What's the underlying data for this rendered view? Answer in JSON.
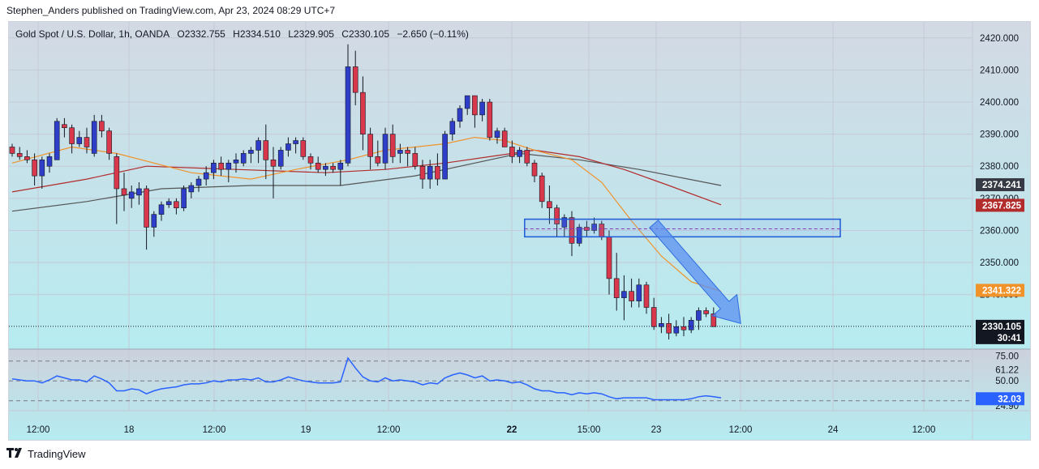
{
  "header": {
    "publisher": "Stephen_Anders published on TradingView.com, Apr 23, 2024 08:29 UTC+7"
  },
  "legend": {
    "symbol": "Gold Spot / U.S. Dollar, 1h, OANDA",
    "open": "O2332.755",
    "high": "H2334.510",
    "low": "L2329.905",
    "close": "C2330.105",
    "change": "−2.650 (−0.11%)"
  },
  "footer": {
    "brand": "TradingView"
  },
  "colors": {
    "up": "#2e3ec9",
    "down": "#d9374b",
    "sma_fast": "#f0932b",
    "sma_mid": "#b22c2c",
    "sma_slow": "#555555",
    "rsi": "#2962ff",
    "zone": "#1e5bd6",
    "arrow": "#5b8ff0"
  },
  "chart_data": {
    "type": "candlestick",
    "symbol": "Gold Spot / U.S. Dollar",
    "timeframe": "1h",
    "ylim": [
      2323,
      2425
    ],
    "y_ticks": [
      "2420.000",
      "2410.000",
      "2400.000",
      "2390.000",
      "2380.000",
      "2370.000",
      "2360.000",
      "2350.000",
      "2340.000"
    ],
    "x_ticks": [
      "12:00",
      "18",
      "12:00",
      "19",
      "12:00",
      "22",
      "15:00",
      "23",
      "12:00",
      "24",
      "12:00"
    ],
    "x_tick_bold": [
      false,
      false,
      false,
      false,
      false,
      true,
      false,
      false,
      false,
      false,
      false
    ],
    "price_labels": [
      {
        "text": "2374.241",
        "value": 2374.241,
        "bg": "#363a45",
        "fg": "#ffffff"
      },
      {
        "text": "2367.825",
        "value": 2367.825,
        "bg": "#b22c2c",
        "fg": "#ffffff"
      },
      {
        "text": "2341.322",
        "value": 2341.322,
        "bg": "#f0932b",
        "fg": "#ffffff"
      }
    ],
    "last_price": {
      "text": "2330.105",
      "value": 2330.105,
      "countdown": "30:41"
    },
    "candles": [
      [
        2386,
        2387,
        2383,
        2384
      ],
      [
        2384,
        2386,
        2382,
        2383
      ],
      [
        2383,
        2385,
        2381,
        2382
      ],
      [
        2382,
        2384,
        2374,
        2377
      ],
      [
        2377,
        2383,
        2373,
        2382
      ],
      [
        2380,
        2384,
        2378,
        2383
      ],
      [
        2382,
        2395,
        2382,
        2394
      ],
      [
        2393,
        2395,
        2389,
        2392
      ],
      [
        2392,
        2393,
        2384,
        2387
      ],
      [
        2387,
        2391,
        2386,
        2389
      ],
      [
        2389,
        2392,
        2384,
        2386
      ],
      [
        2384,
        2396,
        2383,
        2394
      ],
      [
        2394,
        2396,
        2389,
        2391
      ],
      [
        2391,
        2392,
        2382,
        2384
      ],
      [
        2383,
        2384,
        2362,
        2373
      ],
      [
        2373,
        2378,
        2366,
        2371
      ],
      [
        2370,
        2374,
        2367,
        2372
      ],
      [
        2371,
        2375,
        2368,
        2373
      ],
      [
        2373,
        2374,
        2354,
        2361
      ],
      [
        2361,
        2366,
        2358,
        2365
      ],
      [
        2365,
        2369,
        2363,
        2368
      ],
      [
        2368,
        2370,
        2367,
        2369
      ],
      [
        2369,
        2370,
        2365,
        2367
      ],
      [
        2367,
        2374,
        2366,
        2373
      ],
      [
        2372,
        2375,
        2370,
        2374
      ],
      [
        2374,
        2377,
        2372,
        2376
      ],
      [
        2376,
        2380,
        2374,
        2378
      ],
      [
        2378,
        2382,
        2376,
        2381
      ],
      [
        2381,
        2383,
        2377,
        2379
      ],
      [
        2379,
        2382,
        2375,
        2381
      ],
      [
        2381,
        2384,
        2378,
        2382
      ],
      [
        2381,
        2385,
        2380,
        2384
      ],
      [
        2384,
        2386,
        2381,
        2385
      ],
      [
        2385,
        2389,
        2381,
        2388
      ],
      [
        2388,
        2393,
        2376,
        2382
      ],
      [
        2382,
        2386,
        2370,
        2380
      ],
      [
        2380,
        2386,
        2379,
        2385
      ],
      [
        2385,
        2389,
        2383,
        2387
      ],
      [
        2387,
        2389,
        2384,
        2388
      ],
      [
        2388,
        2389,
        2382,
        2383
      ],
      [
        2383,
        2384,
        2379,
        2381
      ],
      [
        2381,
        2383,
        2378,
        2379
      ],
      [
        2379,
        2381,
        2377,
        2380
      ],
      [
        2380,
        2381,
        2378,
        2379
      ],
      [
        2379,
        2382,
        2374,
        2381
      ],
      [
        2381,
        2418,
        2380,
        2411
      ],
      [
        2411,
        2416,
        2399,
        2403
      ],
      [
        2403,
        2408,
        2385,
        2390
      ],
      [
        2390,
        2392,
        2379,
        2383
      ],
      [
        2383,
        2388,
        2380,
        2381
      ],
      [
        2381,
        2392,
        2379,
        2390
      ],
      [
        2390,
        2393,
        2381,
        2383
      ],
      [
        2384,
        2387,
        2381,
        2385
      ],
      [
        2385,
        2386,
        2380,
        2384
      ],
      [
        2384,
        2386,
        2379,
        2380
      ],
      [
        2380,
        2382,
        2373,
        2376
      ],
      [
        2376,
        2382,
        2373,
        2380
      ],
      [
        2380,
        2384,
        2374,
        2376
      ],
      [
        2376,
        2391,
        2376,
        2390
      ],
      [
        2390,
        2395,
        2388,
        2394
      ],
      [
        2394,
        2399,
        2392,
        2398
      ],
      [
        2398,
        2402,
        2396,
        2402
      ],
      [
        2402,
        2401,
        2392,
        2396
      ],
      [
        2396,
        2401,
        2394,
        2400
      ],
      [
        2400,
        2401,
        2388,
        2389
      ],
      [
        2389,
        2392,
        2387,
        2391
      ],
      [
        2391,
        2392,
        2386,
        2386
      ],
      [
        2386,
        2388,
        2381,
        2383
      ],
      [
        2383,
        2386,
        2381,
        2385
      ],
      [
        2385,
        2386,
        2380,
        2381
      ],
      [
        2381,
        2382,
        2375,
        2377
      ],
      [
        2377,
        2378,
        2367,
        2369
      ],
      [
        2369,
        2374,
        2362,
        2367
      ],
      [
        2367,
        2368,
        2358,
        2362
      ],
      [
        2361,
        2365,
        2358,
        2364
      ],
      [
        2364,
        2366,
        2352,
        2356
      ],
      [
        2356,
        2362,
        2355,
        2361
      ],
      [
        2361,
        2363,
        2358,
        2360
      ],
      [
        2360,
        2364,
        2359,
        2362
      ],
      [
        2362,
        2363,
        2357,
        2358
      ],
      [
        2358,
        2360,
        2340,
        2345
      ],
      [
        2345,
        2353,
        2335,
        2339
      ],
      [
        2339,
        2346,
        2332,
        2341
      ],
      [
        2341,
        2345,
        2336,
        2338
      ],
      [
        2338,
        2345,
        2336,
        2343
      ],
      [
        2343,
        2344,
        2334,
        2336
      ],
      [
        2336,
        2339,
        2329,
        2330
      ],
      [
        2330,
        2333,
        2328,
        2331
      ],
      [
        2331,
        2334,
        2326,
        2328
      ],
      [
        2328,
        2332,
        2327,
        2330
      ],
      [
        2330,
        2333,
        2327,
        2329
      ],
      [
        2329,
        2333,
        2328,
        2332
      ],
      [
        2332,
        2336,
        2329,
        2335
      ],
      [
        2335,
        2336,
        2333,
        2334
      ],
      [
        2334,
        2336,
        2330,
        2330
      ]
    ],
    "sma_fast": [
      [
        0,
        2381
      ],
      [
        8,
        2386
      ],
      [
        14,
        2384
      ],
      [
        24,
        2378
      ],
      [
        32,
        2376
      ],
      [
        38,
        2379
      ],
      [
        45,
        2382
      ],
      [
        50,
        2385
      ],
      [
        58,
        2387
      ],
      [
        62,
        2389
      ],
      [
        66,
        2388
      ],
      [
        70,
        2385
      ],
      [
        75,
        2382
      ],
      [
        79,
        2375
      ],
      [
        83,
        2363
      ],
      [
        87,
        2352
      ],
      [
        91,
        2344
      ],
      [
        95,
        2341
      ]
    ],
    "sma_mid": [
      [
        0,
        2372
      ],
      [
        10,
        2376
      ],
      [
        18,
        2380
      ],
      [
        30,
        2379
      ],
      [
        42,
        2378
      ],
      [
        50,
        2379
      ],
      [
        58,
        2381
      ],
      [
        64,
        2383
      ],
      [
        70,
        2385
      ],
      [
        76,
        2383
      ],
      [
        82,
        2379
      ],
      [
        88,
        2374
      ],
      [
        95,
        2368
      ]
    ],
    "sma_slow": [
      [
        0,
        2366
      ],
      [
        10,
        2369
      ],
      [
        20,
        2373
      ],
      [
        32,
        2374
      ],
      [
        44,
        2374
      ],
      [
        54,
        2377
      ],
      [
        62,
        2381
      ],
      [
        68,
        2384
      ],
      [
        76,
        2382
      ],
      [
        84,
        2379
      ],
      [
        95,
        2374
      ]
    ],
    "zone": {
      "from_index": 69,
      "to_index": 110,
      "top": 2363.5,
      "bottom": 2358,
      "mid": 2360.5
    },
    "arrow": {
      "from": [
        86,
        2362
      ],
      "to": [
        96,
        2331
      ]
    },
    "rsi": {
      "ylim": [
        20,
        82
      ],
      "levels": [
        70,
        50,
        30
      ],
      "tick_labels": [
        "75.00",
        "61.22",
        "50.00",
        "32.03",
        "24.90"
      ],
      "value_label": "32.03",
      "values": [
        52,
        51,
        50,
        50,
        48,
        51,
        55,
        53,
        51,
        51,
        49,
        55,
        52,
        48,
        40,
        40,
        42,
        41,
        37,
        40,
        42,
        43,
        44,
        46,
        47,
        47,
        48,
        50,
        49,
        51,
        51,
        52,
        51,
        53,
        49,
        49,
        51,
        54,
        52,
        50,
        49,
        48,
        48,
        48,
        49,
        73,
        63,
        54,
        50,
        49,
        53,
        50,
        51,
        50,
        49,
        46,
        48,
        47,
        53,
        56,
        58,
        56,
        53,
        55,
        50,
        51,
        50,
        48,
        49,
        46,
        42,
        40,
        40,
        38,
        38,
        36,
        38,
        37,
        38,
        37,
        34,
        32,
        33,
        33,
        33,
        33,
        31,
        31,
        31,
        31,
        31,
        32,
        34,
        35,
        34,
        33
      ]
    }
  }
}
